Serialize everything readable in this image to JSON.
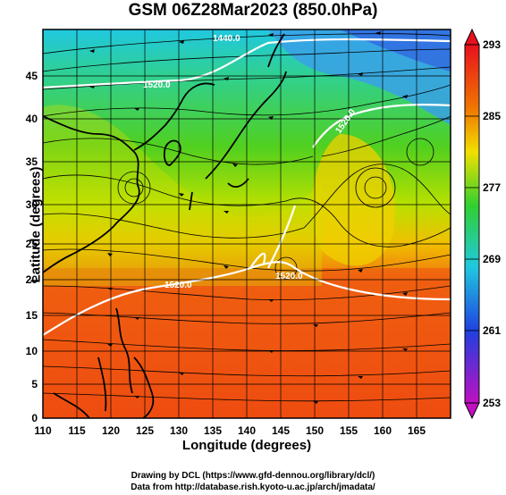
{
  "title": "GSM 06Z28Mar2023 (850.0hPa)",
  "xlabel": "Longitude (degrees)",
  "ylabel": "Latitude (degrees)",
  "credit_line1": "Drawing by DCL (https://www.gfd-dennou.org/library/dcl/)",
  "credit_line2": "Data from http://database.rish.kyoto-u.ac.jp/arch/jmadata/",
  "map": {
    "lon_range": [
      110,
      170
    ],
    "lat_range": [
      0,
      50
    ],
    "lon_ticks": [
      "110",
      "115",
      "120",
      "125",
      "130",
      "135",
      "140",
      "145",
      "150",
      "155",
      "160",
      "165"
    ],
    "lat_ticks": [
      "0",
      "5",
      "10",
      "15",
      "20",
      "25",
      "30",
      "35",
      "40",
      "45"
    ],
    "grid": true
  },
  "colorbar": {
    "labels": [
      "293",
      "285",
      "277",
      "269",
      "261",
      "253"
    ],
    "colors": [
      "#e8101e",
      "#f07800",
      "#f0e000",
      "#30d030",
      "#20c8e0",
      "#2040e0",
      "#c010c0"
    ]
  },
  "contour_labels": [
    "1440.0",
    "1520.0",
    "1520.0",
    "1520.0",
    "1520.0"
  ]
}
